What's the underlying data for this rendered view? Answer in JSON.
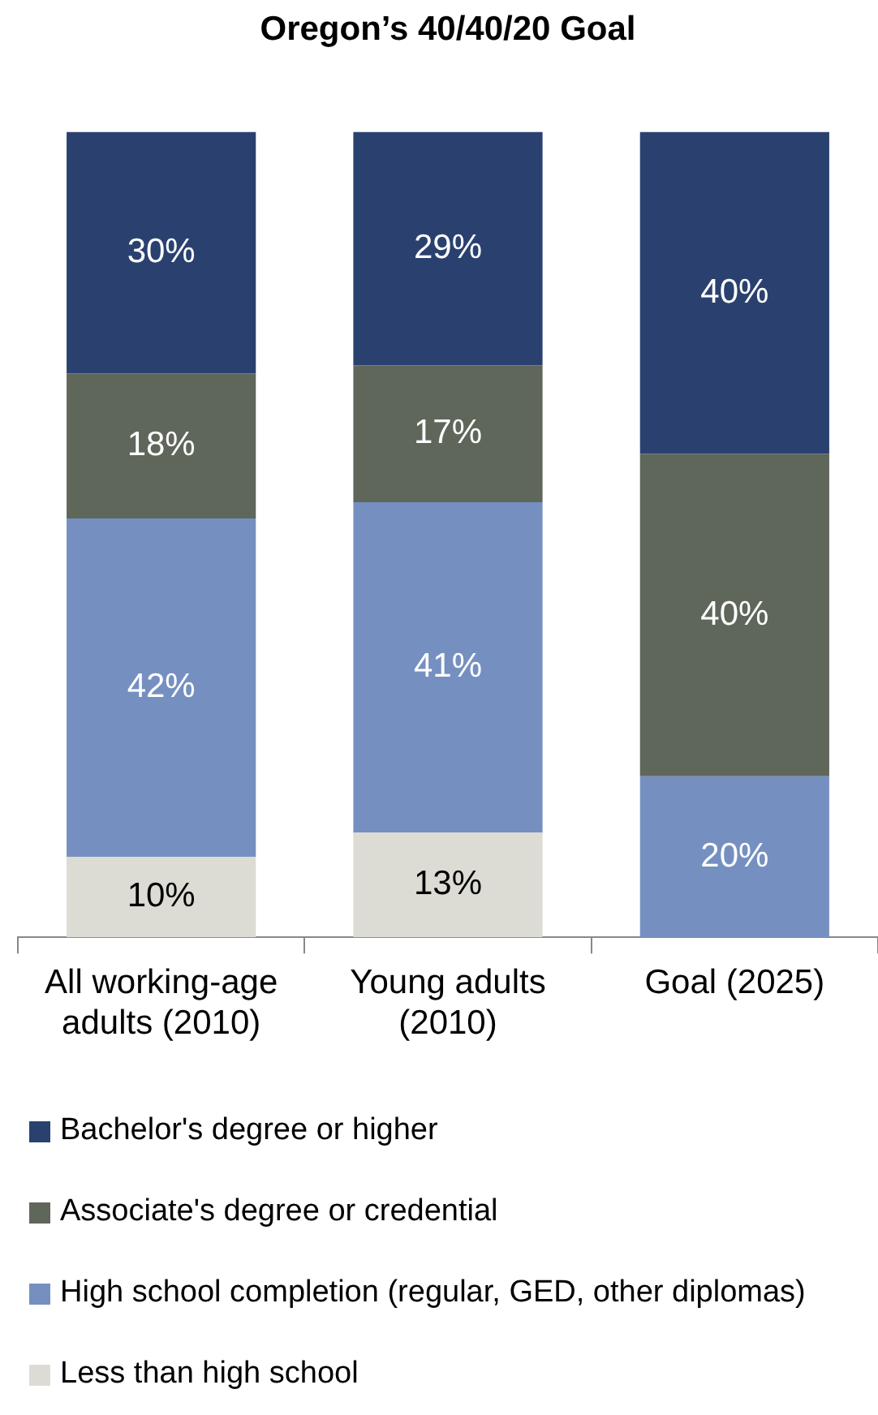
{
  "chart_data": {
    "type": "bar",
    "title": "Oregon’s 40/40/20 Goal",
    "stacked": true,
    "grid": false,
    "legend": "bottom",
    "tick_labels": "x",
    "categories": [
      "All working-age adults (2010)",
      "Young adults (2010)",
      "Goal (2025)"
    ],
    "series": [
      {
        "name": "Less than high school",
        "color": "#dcdcd4",
        "values": [
          10,
          13,
          null
        ],
        "value_labels": [
          "10%",
          "13%",
          null
        ]
      },
      {
        "name": "High school completion (regular, GED, other diplomas)",
        "color": "#7590c0",
        "values": [
          42,
          41,
          20
        ],
        "value_labels": [
          "42%",
          "41%",
          "20%"
        ]
      },
      {
        "name": "Associate's degree or credential",
        "color": "#5f665a",
        "values": [
          18,
          17,
          40
        ],
        "value_labels": [
          "18%",
          "17%",
          "40%"
        ]
      },
      {
        "name": "Bachelor's degree or higher",
        "color": "#2a4170",
        "values": [
          30,
          29,
          40
        ],
        "value_labels": [
          "30%",
          "29%",
          "40%"
        ]
      }
    ]
  }
}
